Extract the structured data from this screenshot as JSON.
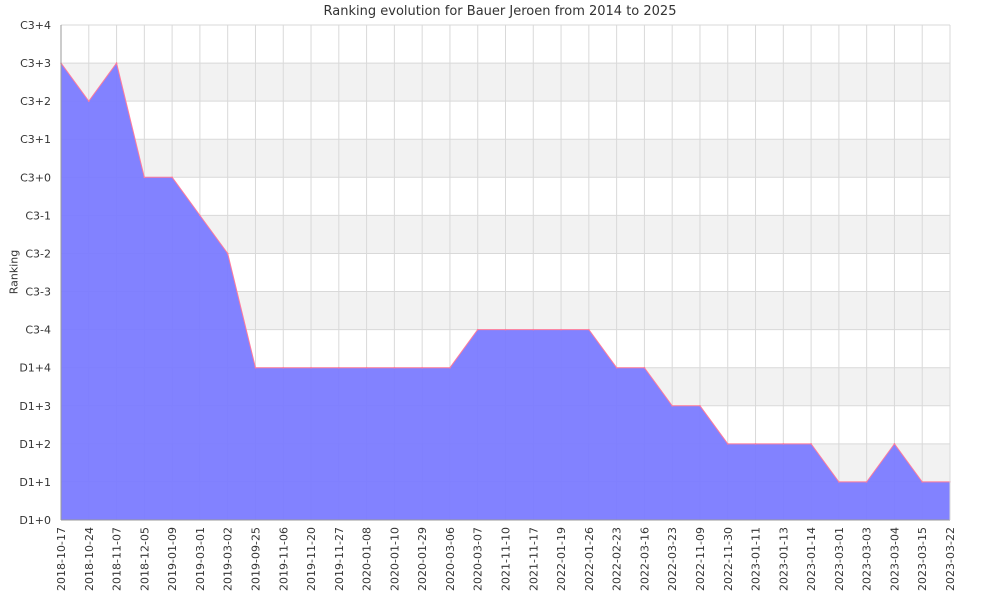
{
  "chart_data": {
    "type": "area",
    "title": "Ranking evolution for Bauer Jeroen from 2014 to 2025",
    "xlabel": "",
    "ylabel": "Ranking",
    "y_levels": [
      "D1+0",
      "D1+1",
      "D1+2",
      "D1+3",
      "D1+4",
      "C3-4",
      "C3-3",
      "C3-2",
      "C3-1",
      "C3+0",
      "C3+1",
      "C3+2",
      "C3+3",
      "C3+4"
    ],
    "ylim": [
      "D1+0",
      "C3+4"
    ],
    "grid": true,
    "x": [
      "2018-10-17",
      "2018-10-24",
      "2018-11-07",
      "2018-12-05",
      "2019-01-09",
      "2019-03-01",
      "2019-03-02",
      "2019-09-25",
      "2019-11-06",
      "2019-11-20",
      "2019-11-27",
      "2020-01-08",
      "2020-01-10",
      "2020-01-29",
      "2020-03-06",
      "2020-03-07",
      "2021-11-10",
      "2021-11-17",
      "2022-01-19",
      "2022-01-26",
      "2022-02-23",
      "2022-03-16",
      "2022-03-23",
      "2022-11-09",
      "2022-11-30",
      "2023-01-11",
      "2023-01-13",
      "2023-01-14",
      "2023-03-01",
      "2023-03-03",
      "2023-03-04",
      "2023-03-15",
      "2023-03-22"
    ],
    "series": [
      {
        "values": [
          "C3+3",
          "C3+2",
          "C3+3",
          "C3+0",
          "C3+0",
          "C3-1",
          "C3-2",
          "D1+4",
          "D1+4",
          "D1+4",
          "D1+4",
          "D1+4",
          "D1+4",
          "D1+4",
          "D1+4",
          "C3-4",
          "C3-4",
          "C3-4",
          "C3-4",
          "C3-4",
          "D1+4",
          "D1+4",
          "D1+3",
          "D1+3",
          "D1+2",
          "D1+2",
          "D1+2",
          "D1+2",
          "D1+1",
          "D1+1",
          "D1+2",
          "D1+1",
          "D1+1"
        ]
      }
    ],
    "colors": {
      "fill": "#7b7bff",
      "line": "#ff7b9c",
      "band": "#f2f2f2",
      "grid": "#d9d9d9",
      "axis": "#999999"
    }
  }
}
